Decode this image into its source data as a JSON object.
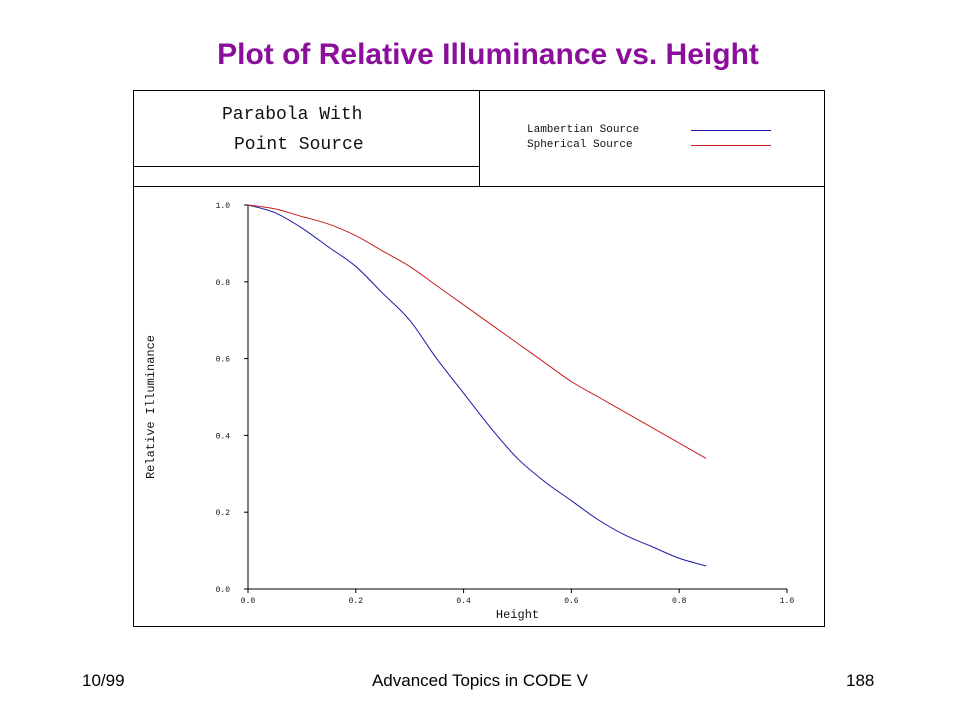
{
  "slide": {
    "title": "Plot of Relative Illuminance vs. Height",
    "footer_left": "10/99",
    "footer_center": "Advanced Topics in CODE V",
    "footer_right": "188"
  },
  "colors": {
    "title": "#8b0f9b",
    "lambertian": "#1a1aa8",
    "spherical": "#c81e1e"
  },
  "chart_data": {
    "type": "line",
    "title_lines": [
      "Parabola With",
      "Point Source"
    ],
    "xlabel": "Height",
    "ylabel": "Relative Illuminance",
    "xlim": [
      0.0,
      1.0
    ],
    "ylim": [
      0.0,
      1.0
    ],
    "xticks": [
      "0.0",
      "0.2",
      "0.4",
      "0.6",
      "0.8",
      "1.0"
    ],
    "yticks": [
      "0.0",
      "0.2",
      "0.4",
      "0.6",
      "0.8",
      "1.0"
    ],
    "grid": false,
    "legend_position": "top-right",
    "series": [
      {
        "name": "Lambertian Source",
        "color": "#1a1aa8",
        "x": [
          0.0,
          0.05,
          0.1,
          0.15,
          0.2,
          0.25,
          0.3,
          0.35,
          0.4,
          0.45,
          0.5,
          0.55,
          0.6,
          0.65,
          0.7,
          0.75,
          0.8,
          0.85
        ],
        "y": [
          1.0,
          0.98,
          0.94,
          0.89,
          0.84,
          0.77,
          0.7,
          0.6,
          0.51,
          0.42,
          0.34,
          0.28,
          0.23,
          0.18,
          0.14,
          0.11,
          0.08,
          0.06
        ]
      },
      {
        "name": "Spherical Source",
        "color": "#c81e1e",
        "x": [
          0.0,
          0.05,
          0.1,
          0.15,
          0.2,
          0.25,
          0.3,
          0.35,
          0.4,
          0.45,
          0.5,
          0.55,
          0.6,
          0.65,
          0.7,
          0.75,
          0.8,
          0.85
        ],
        "y": [
          1.0,
          0.99,
          0.97,
          0.95,
          0.92,
          0.88,
          0.84,
          0.79,
          0.74,
          0.69,
          0.64,
          0.59,
          0.54,
          0.5,
          0.46,
          0.42,
          0.38,
          0.34
        ]
      }
    ]
  }
}
